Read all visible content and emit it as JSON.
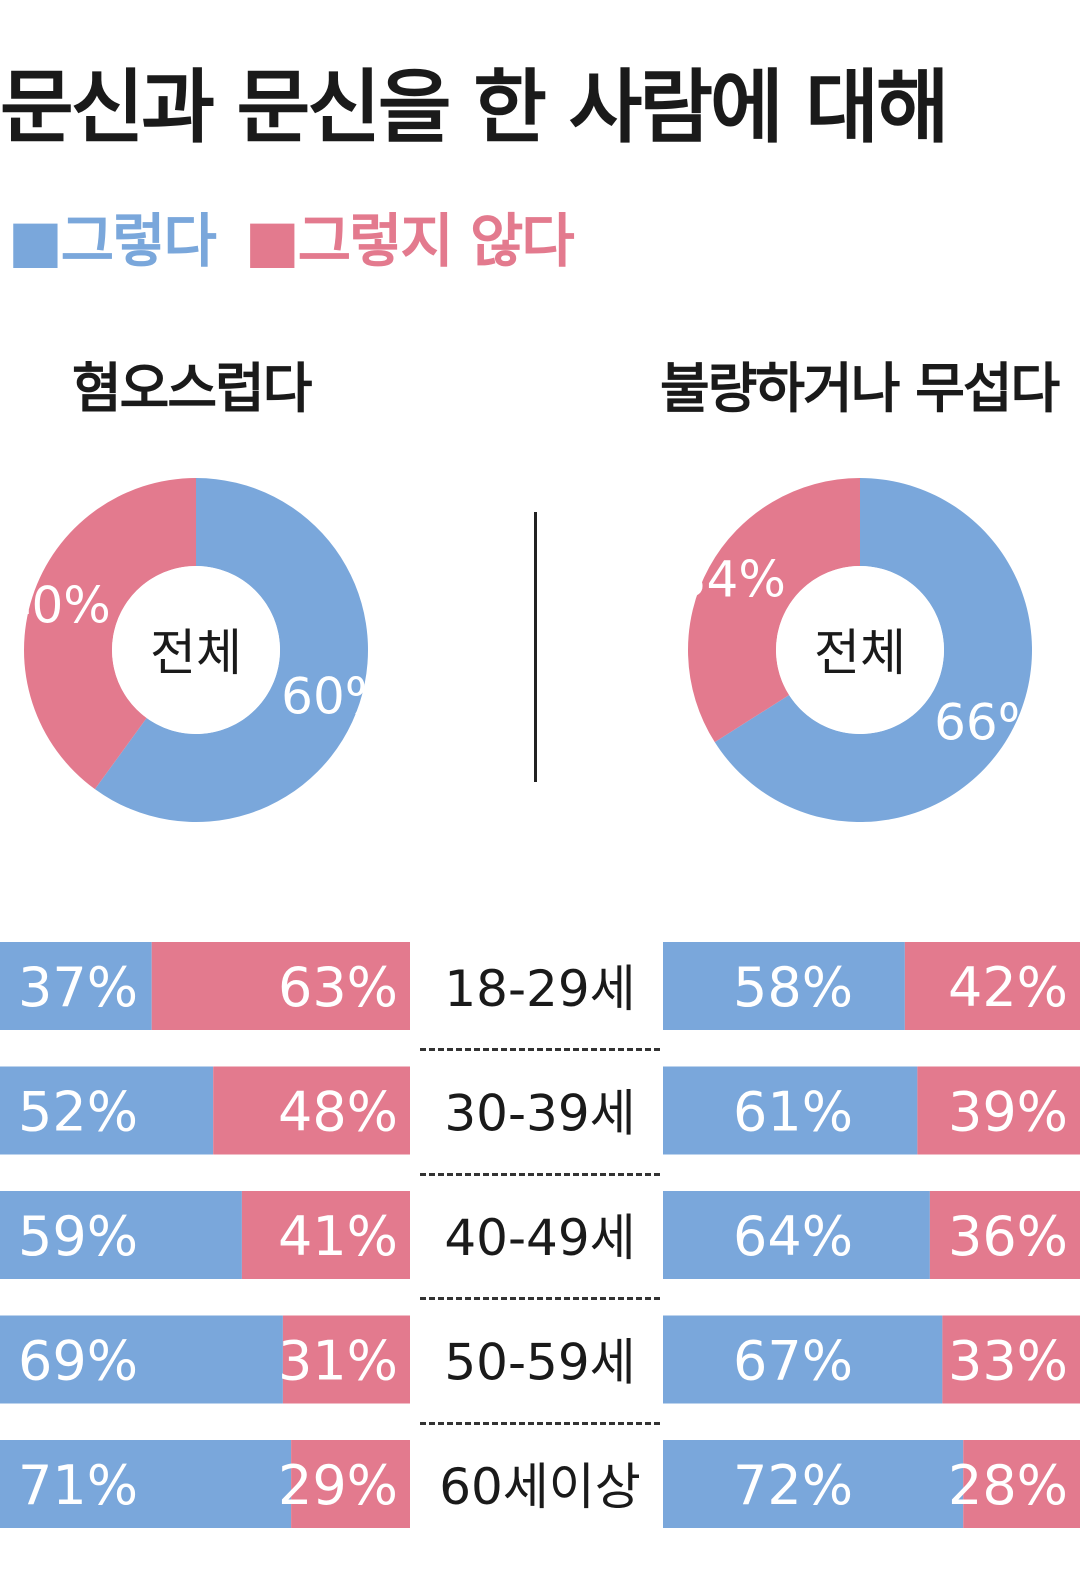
{
  "title": "문신과 문신을 한 사람에 대해",
  "legend": [
    {
      "label": "■그렇다",
      "color": "#7aa7db"
    },
    {
      "label": "■그렇지 않다",
      "color": "#e37a8e"
    }
  ],
  "colors": {
    "yes": "#7aa7db",
    "no": "#e37a8e",
    "label_text": "#ffffff"
  },
  "chart_data": [
    {
      "type": "pie",
      "title": "혐오스럽다",
      "center_label": "전체",
      "slices": [
        {
          "label": "그렇다",
          "value": 60,
          "display": "60%"
        },
        {
          "label": "그렇지 않다",
          "value": 40,
          "display": "40%"
        }
      ]
    },
    {
      "type": "pie",
      "title": "불량하거나 무섭다",
      "center_label": "전체",
      "slices": [
        {
          "label": "그렇다",
          "value": 66,
          "display": "66%"
        },
        {
          "label": "그렇지 않다",
          "value": 34,
          "display": "34%"
        }
      ]
    },
    {
      "type": "bar",
      "stacked": true,
      "orientation": "horizontal",
      "categories": [
        "18-29세",
        "30-39세",
        "40-49세",
        "50-59세",
        "60세이상"
      ],
      "panels": [
        {
          "title": "혐오스럽다",
          "series": [
            {
              "name": "그렇다",
              "values": [
                37,
                52,
                59,
                69,
                71
              ]
            },
            {
              "name": "그렇지 않다",
              "values": [
                63,
                48,
                41,
                31,
                29
              ]
            }
          ]
        },
        {
          "title": "불량하거나 무섭다",
          "series": [
            {
              "name": "그렇다",
              "values": [
                58,
                61,
                64,
                67,
                72
              ]
            },
            {
              "name": "그렇지 않다",
              "values": [
                42,
                39,
                36,
                33,
                28
              ]
            }
          ]
        }
      ]
    }
  ]
}
